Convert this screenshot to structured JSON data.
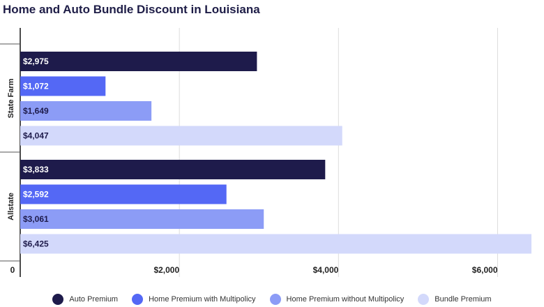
{
  "chart_data": {
    "type": "bar",
    "orientation": "horizontal",
    "title": "Home and Auto Bundle Discount in Louisiana",
    "groups": [
      "State Farm",
      "Allstate"
    ],
    "series": [
      {
        "name": "Auto Premium",
        "color": "#1e1b4b",
        "values": [
          2975,
          3833
        ],
        "labels": [
          "$2,975",
          "$3,833"
        ]
      },
      {
        "name": "Home Premium with Multipolicy",
        "color": "#5468f5",
        "values": [
          1072,
          2592
        ],
        "labels": [
          "$1,072",
          "$2,592"
        ]
      },
      {
        "name": "Home Premium without Multipolicy",
        "color": "#8c9cf6",
        "values": [
          1649,
          3061
        ],
        "labels": [
          "$1,649",
          "$3,061"
        ]
      },
      {
        "name": "Bundle Premium",
        "color": "#d3d9fb",
        "values": [
          4047,
          6425
        ],
        "labels": [
          "$4,047",
          "$6,425"
        ]
      }
    ],
    "xlim": [
      0,
      6425
    ],
    "xticks": [
      0,
      2000,
      4000,
      6000
    ],
    "xtick_labels": [
      "0",
      "$2,000",
      "$4,000",
      "$6,000"
    ],
    "grid": true,
    "legend_position": "bottom"
  }
}
